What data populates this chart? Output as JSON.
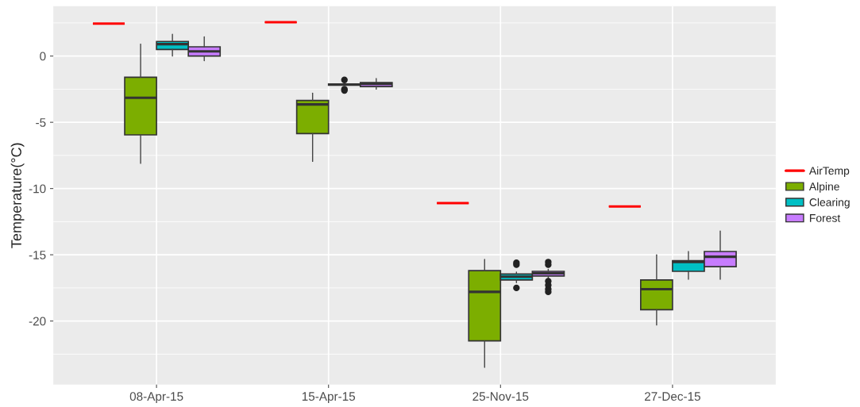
{
  "chart_data": {
    "type": "box",
    "ylabel": "Temperature(°C)",
    "categories": [
      "08-Apr-15",
      "15-Apr-15",
      "25-Nov-15",
      "27-Dec-15"
    ],
    "ylim": [
      -24.8,
      3.77
    ],
    "yticks": [
      {
        "value": 0,
        "label": "0"
      },
      {
        "value": -5,
        "label": "-5"
      },
      {
        "value": -10,
        "label": "-10"
      },
      {
        "value": -15,
        "label": "-15"
      },
      {
        "value": -20,
        "label": "-20"
      }
    ],
    "grid": true,
    "legend": "right",
    "series": [
      {
        "name": "AirTemp",
        "color": "#ff0000",
        "boxes": [
          {
            "low": 2.45,
            "q1": 2.45,
            "median": 2.45,
            "q3": 2.45,
            "high": 2.45
          },
          {
            "low": 2.55,
            "q1": 2.55,
            "median": 2.55,
            "q3": 2.55,
            "high": 2.55
          },
          {
            "low": -11.1,
            "q1": -11.1,
            "median": -11.1,
            "q3": -11.1,
            "high": -11.1
          },
          {
            "low": -11.35,
            "q1": -11.35,
            "median": -11.35,
            "q3": -11.35,
            "high": -11.35
          }
        ]
      },
      {
        "name": "Alpine",
        "color": "#7cae00",
        "boxes": [
          {
            "low": -8.1,
            "q1": -5.95,
            "median": -3.15,
            "q3": -1.6,
            "high": 0.9
          },
          {
            "low": -7.95,
            "q1": -5.85,
            "median": -3.65,
            "q3": -3.35,
            "high": -2.8
          },
          {
            "low": -23.5,
            "q1": -21.5,
            "median": -17.8,
            "q3": -16.2,
            "high": -15.35
          },
          {
            "low": -20.3,
            "q1": -19.15,
            "median": -17.6,
            "q3": -16.9,
            "high": -15.0
          }
        ]
      },
      {
        "name": "Clearing",
        "color": "#00bfc4",
        "boxes": [
          {
            "low": 0.0,
            "q1": 0.5,
            "median": 0.9,
            "q3": 1.1,
            "high": 1.65
          },
          {
            "low": -2.2,
            "q1": -2.2,
            "median": -2.15,
            "q3": -2.1,
            "high": -2.1,
            "outliers": [
              -1.8,
              -2.5,
              -2.6
            ]
          },
          {
            "low": -17.1,
            "q1": -16.9,
            "median": -16.65,
            "q3": -16.45,
            "high": -16.3,
            "outliers": [
              -15.6,
              -15.75,
              -17.5
            ]
          },
          {
            "low": -16.85,
            "q1": -16.25,
            "median": -15.55,
            "q3": -15.45,
            "high": -14.75
          }
        ]
      },
      {
        "name": "Forest",
        "color": "#c77cff",
        "boxes": [
          {
            "low": -0.35,
            "q1": 0.0,
            "median": 0.35,
            "q3": 0.7,
            "high": 1.45
          },
          {
            "low": -2.5,
            "q1": -2.3,
            "median": -2.1,
            "q3": -2.0,
            "high": -1.7
          },
          {
            "low": -16.8,
            "q1": -16.6,
            "median": -16.4,
            "q3": -16.25,
            "high": -16.1,
            "outliers": [
              -15.55,
              -15.75,
              -17.0,
              -17.3,
              -17.6,
              -17.8
            ]
          },
          {
            "low": -16.85,
            "q1": -15.9,
            "median": -15.15,
            "q3": -14.75,
            "high": -13.2
          }
        ]
      }
    ]
  }
}
